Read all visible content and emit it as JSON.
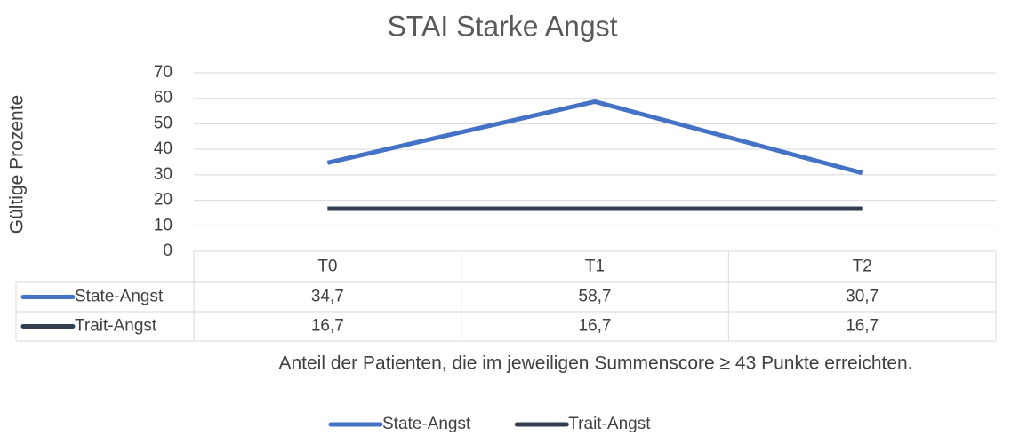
{
  "chart_data": {
    "type": "line",
    "title": "STAI Starke Angst",
    "y_label": "Gültige Prozente",
    "x_label": "Anteil der Patienten, die im jeweiligen Summenscore ≥ 43 Punkte erreichten.",
    "categories": [
      "T0",
      "T1",
      "T2"
    ],
    "series": [
      {
        "name": "State-Angst",
        "color": "#4472c4",
        "values": [
          34.7,
          58.7,
          30.7
        ],
        "value_labels": [
          "34,7",
          "58,7",
          "30,7"
        ]
      },
      {
        "name": "Trait-Angst",
        "color": "#333f50",
        "values": [
          16.7,
          16.7,
          16.7
        ],
        "value_labels": [
          "16,7",
          "16,7",
          "16,7"
        ]
      }
    ],
    "ylim": [
      0,
      70
    ],
    "yticks": [
      0,
      10,
      20,
      30,
      40,
      50,
      60,
      70
    ],
    "grid": true,
    "legend": "bottom"
  }
}
